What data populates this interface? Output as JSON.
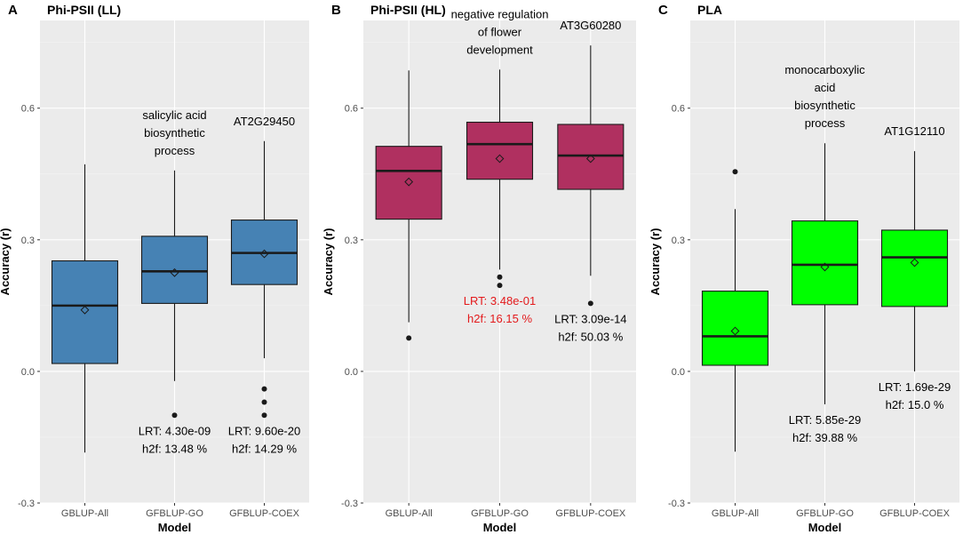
{
  "colors": {
    "panel_bg": "#ebebeb",
    "grid_major": "#ffffff",
    "grid_minor": "#f4f4f4",
    "axis_text": "#4d4d4d",
    "title_text": "#000000",
    "outline": "#1a1a1a",
    "highlight_text": "#e31a1c"
  },
  "chart_data": [
    {
      "type": "box",
      "panel_label": "A",
      "title": "Phi-PSII (LL)",
      "xlabel": "Model",
      "ylabel": "Accuracy (r)",
      "ylim": [
        -0.3,
        0.8
      ],
      "yticks": [
        -0.3,
        0.0,
        0.3,
        0.6
      ],
      "ytick_labels": [
        "-0.3",
        "0.0",
        "0.3",
        "0.6"
      ],
      "categories": [
        "GBLUP-All",
        "GFBLUP-GO",
        "GFBLUP-COEX"
      ],
      "fill": "#4682b4",
      "boxes": [
        {
          "category": "GBLUP-All",
          "min": -0.185,
          "q1": 0.018,
          "median": 0.15,
          "q3": 0.252,
          "max": 0.472,
          "mean": 0.14,
          "outliers": [],
          "annotation": [],
          "stats": []
        },
        {
          "category": "GFBLUP-GO",
          "min": -0.022,
          "q1": 0.155,
          "median": 0.228,
          "q3": 0.308,
          "max": 0.458,
          "mean": 0.225,
          "outliers": [
            -0.1
          ],
          "annotation": [
            "salicylic acid",
            "biosynthetic",
            "process"
          ],
          "stats": [
            "LRT: 4.30e-09",
            "h2f:  13.48 %"
          ],
          "stats_highlight": false
        },
        {
          "category": "GFBLUP-COEX",
          "min": 0.03,
          "q1": 0.198,
          "median": 0.27,
          "q3": 0.345,
          "max": 0.525,
          "mean": 0.268,
          "outliers": [
            -0.04,
            -0.07,
            -0.1
          ],
          "annotation": [
            "AT2G29450"
          ],
          "stats": [
            "LRT: 9.60e-20",
            "h2f:  14.29 %"
          ],
          "stats_highlight": false
        }
      ]
    },
    {
      "type": "box",
      "panel_label": "B",
      "title": "Phi-PSII (HL)",
      "xlabel": "Model",
      "ylabel": "Accuracy (r)",
      "ylim": [
        -0.3,
        0.8
      ],
      "yticks": [
        -0.3,
        0.0,
        0.3,
        0.6
      ],
      "ytick_labels": [
        "-0.3",
        "0.0",
        "0.3",
        "0.6"
      ],
      "categories": [
        "GBLUP-All",
        "GFBLUP-GO",
        "GFBLUP-COEX"
      ],
      "fill": "#b03060",
      "boxes": [
        {
          "category": "GBLUP-All",
          "min": 0.112,
          "q1": 0.347,
          "median": 0.457,
          "q3": 0.513,
          "max": 0.686,
          "mean": 0.432,
          "outliers": [
            0.076
          ],
          "annotation": [],
          "stats": []
        },
        {
          "category": "GFBLUP-GO",
          "min": 0.232,
          "q1": 0.438,
          "median": 0.518,
          "q3": 0.568,
          "max": 0.688,
          "mean": 0.485,
          "outliers": [
            0.215,
            0.196
          ],
          "annotation": [
            "negative regulation",
            "of flower",
            "development"
          ],
          "stats": [
            "LRT: 3.48e-01",
            "h2f:  16.15 %"
          ],
          "stats_highlight": true
        },
        {
          "category": "GFBLUP-COEX",
          "min": 0.218,
          "q1": 0.415,
          "median": 0.492,
          "q3": 0.563,
          "max": 0.743,
          "mean": 0.485,
          "outliers": [
            0.155
          ],
          "annotation": [
            "AT3G60280"
          ],
          "stats": [
            "LRT: 3.09e-14",
            "h2f:  50.03 %"
          ],
          "stats_highlight": false
        }
      ]
    },
    {
      "type": "box",
      "panel_label": "C",
      "title": "PLA",
      "xlabel": "Model",
      "ylabel": "Accuracy (r)",
      "ylim": [
        -0.3,
        0.8
      ],
      "yticks": [
        -0.3,
        0.0,
        0.3,
        0.6
      ],
      "ytick_labels": [
        "-0.3",
        "0.0",
        "0.3",
        "0.6"
      ],
      "categories": [
        "GBLUP-All",
        "GFBLUP-GO",
        "GFBLUP-COEX"
      ],
      "fill": "#00ff00",
      "boxes": [
        {
          "category": "GBLUP-All",
          "min": -0.183,
          "q1": 0.014,
          "median": 0.08,
          "q3": 0.183,
          "max": 0.37,
          "mean": 0.092,
          "outliers": [
            0.455
          ],
          "annotation": [],
          "stats": []
        },
        {
          "category": "GFBLUP-GO",
          "min": -0.075,
          "q1": 0.152,
          "median": 0.243,
          "q3": 0.343,
          "max": 0.52,
          "mean": 0.238,
          "outliers": [],
          "annotation": [
            "monocarboxylic",
            "acid",
            "biosynthetic",
            "process"
          ],
          "stats": [
            "LRT: 5.85e-29",
            "h2f:  39.88 %"
          ],
          "stats_highlight": false
        },
        {
          "category": "GFBLUP-COEX",
          "min": 0.0,
          "q1": 0.148,
          "median": 0.26,
          "q3": 0.322,
          "max": 0.502,
          "mean": 0.248,
          "outliers": [],
          "annotation": [
            "AT1G12110"
          ],
          "stats": [
            "LRT: 1.69e-29",
            "h2f:  15.0 %"
          ],
          "stats_highlight": false
        }
      ]
    }
  ]
}
